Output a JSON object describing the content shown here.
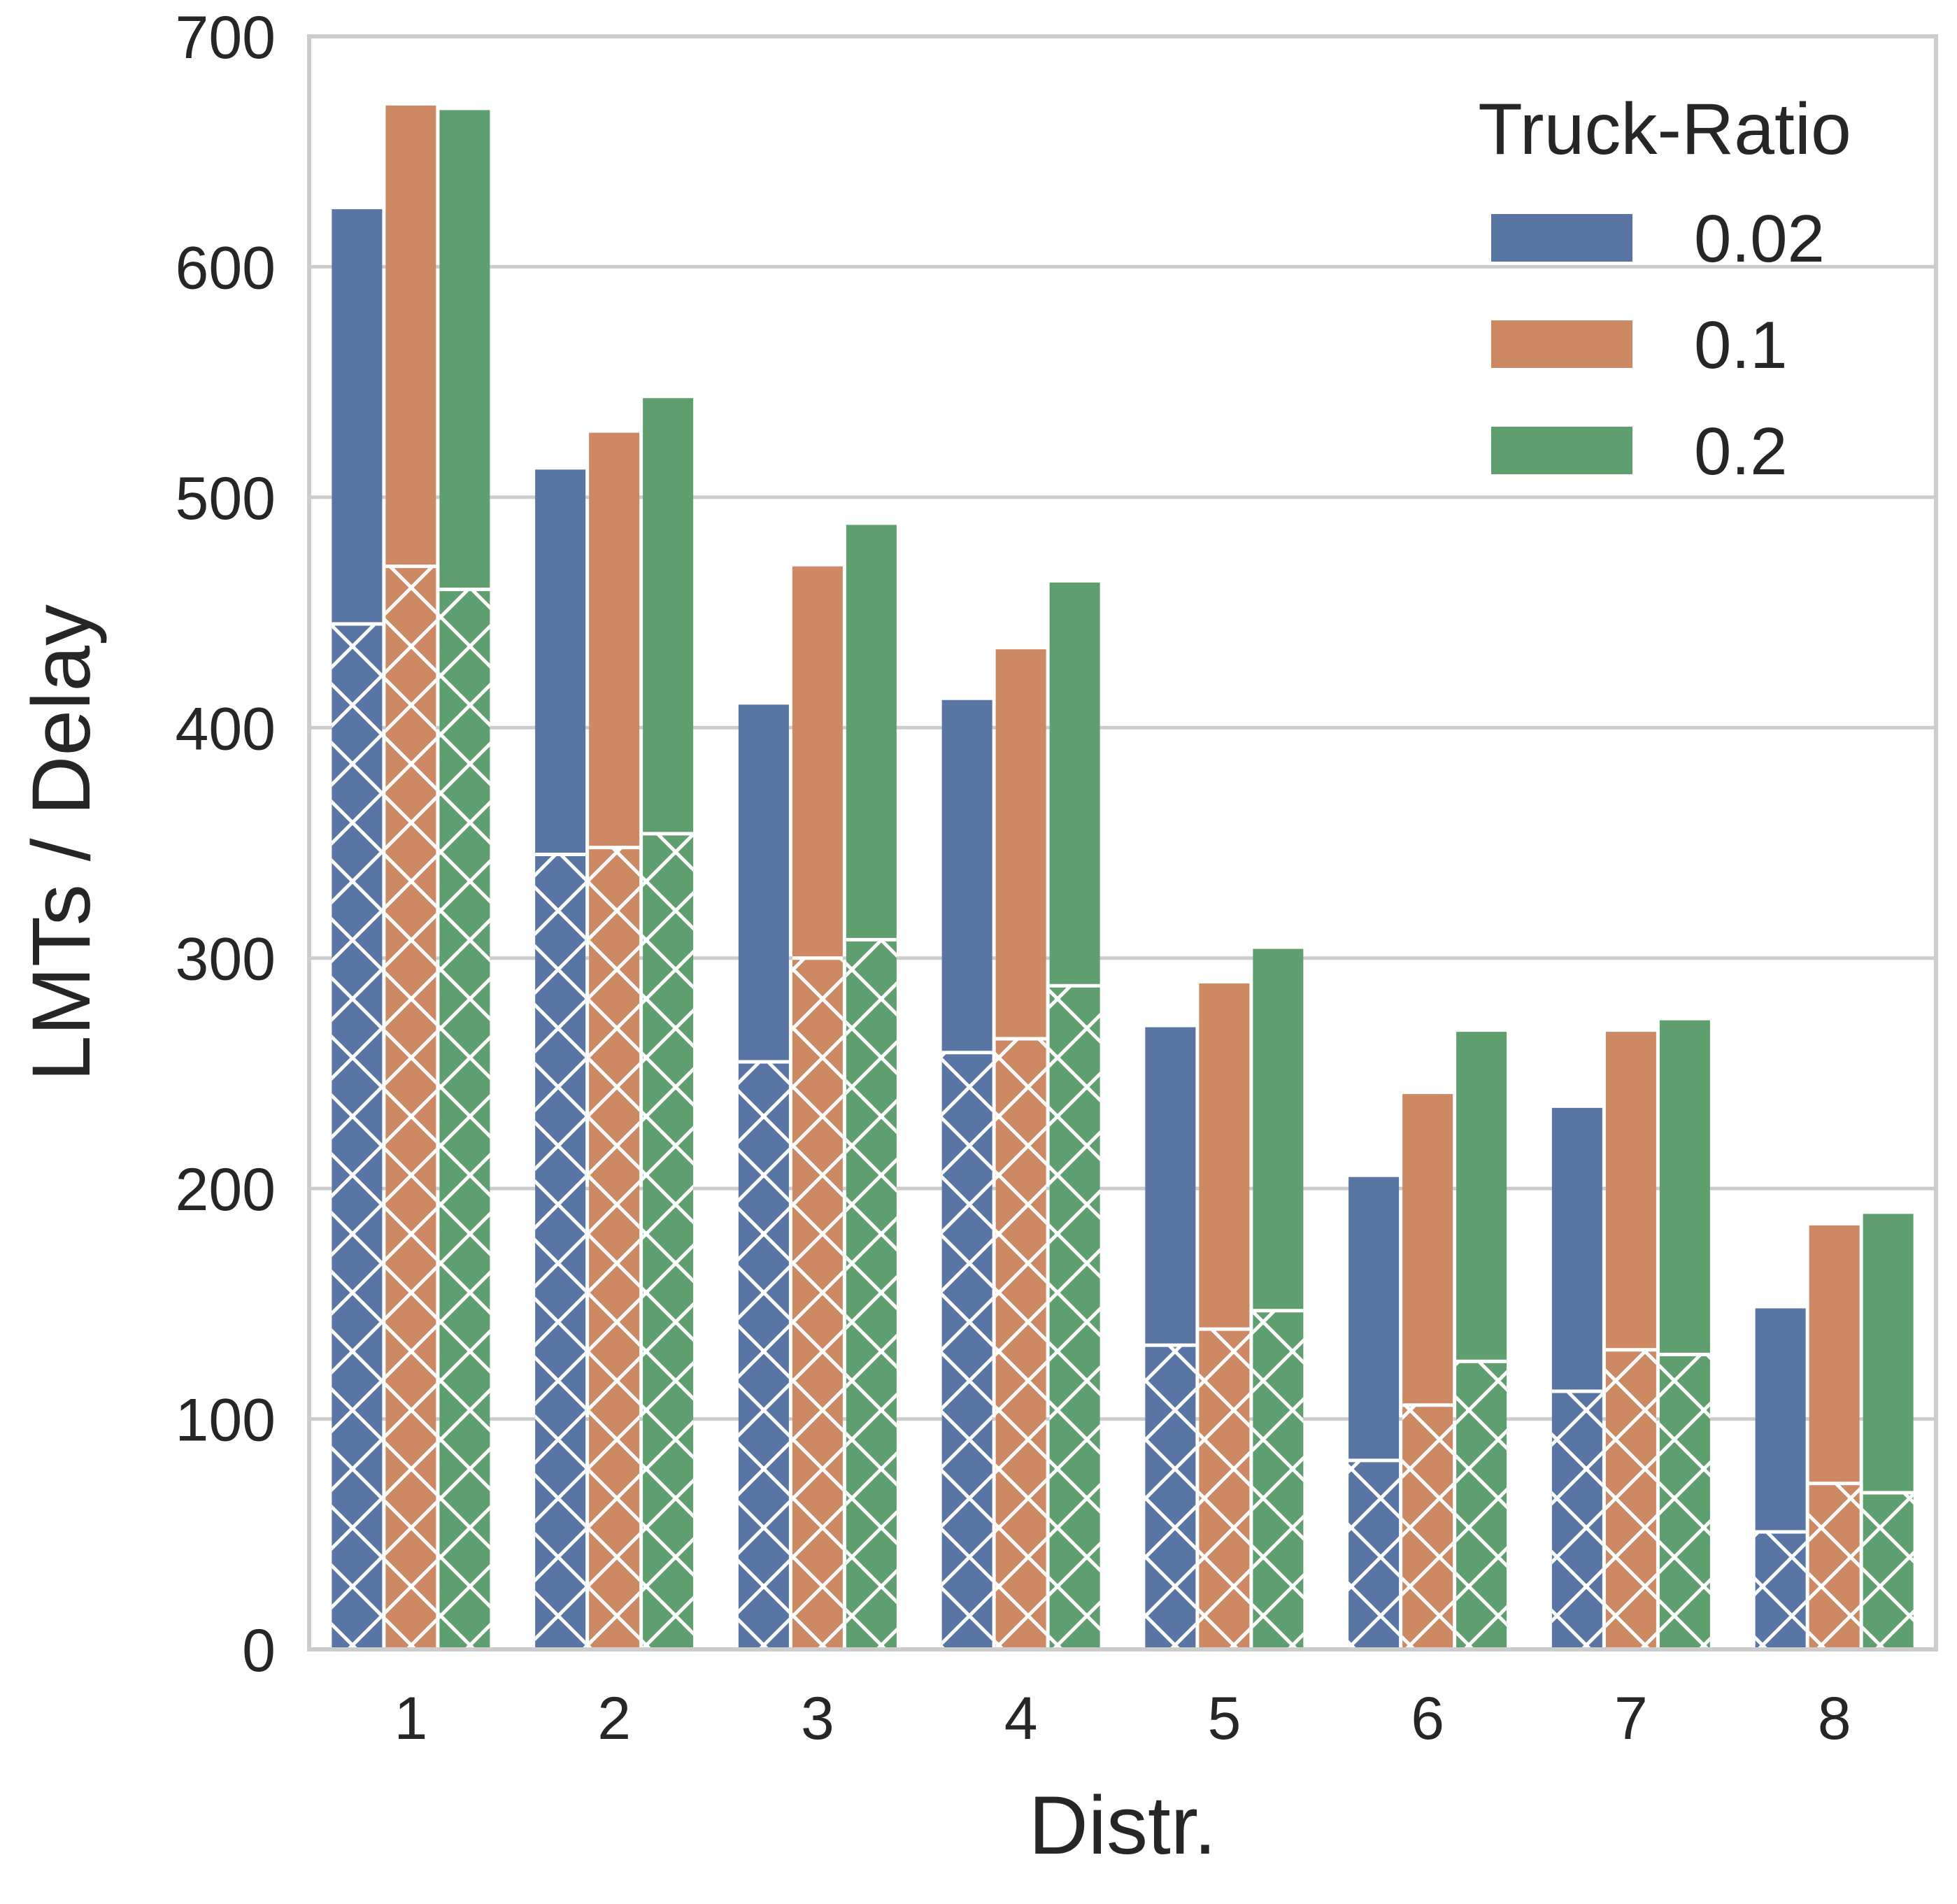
{
  "chart_data": {
    "type": "bar",
    "subtype": "grouped-overlay",
    "title": "",
    "xlabel": "Distr.",
    "ylabel": "LMTs / Delay",
    "ylim": [
      0,
      700
    ],
    "yticks": [
      0,
      100,
      200,
      300,
      400,
      500,
      600,
      700
    ],
    "grid": true,
    "categories": [
      "1",
      "2",
      "3",
      "4",
      "5",
      "6",
      "7",
      "8"
    ],
    "legend": {
      "title": "Truck-Ratio",
      "placement": "top-right"
    },
    "series": [
      {
        "name": "0.02",
        "color": "#5875a4",
        "values": [
          625,
          512,
          410,
          412,
          270,
          205,
          235,
          148
        ],
        "hatched_values": [
          445,
          345,
          255,
          259,
          132,
          82,
          112,
          51
        ]
      },
      {
        "name": "0.1",
        "color": "#cc8963",
        "values": [
          670,
          528,
          470,
          434,
          289,
          241,
          268,
          184
        ],
        "hatched_values": [
          470,
          348,
          300,
          265,
          139,
          106,
          130,
          72
        ]
      },
      {
        "name": "0.2",
        "color": "#5f9e6e",
        "values": [
          668,
          543,
          488,
          463,
          304,
          268,
          273,
          189
        ],
        "hatched_values": [
          460,
          354,
          308,
          288,
          147,
          125,
          128,
          68
        ]
      }
    ]
  }
}
